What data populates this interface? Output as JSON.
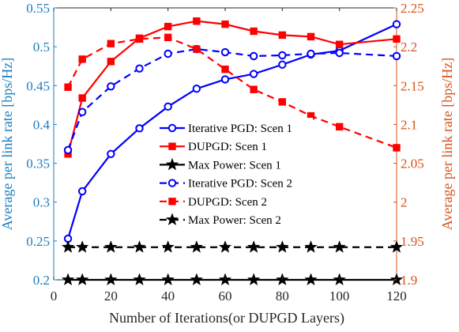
{
  "chart_data": {
    "type": "line",
    "xlabel": "Number of Iterations(or DUPGD Layers)",
    "ylabel_left": "Average per link rate [bps/Hz]",
    "ylabel_right": "Average per link rate [bps/Hz]",
    "xlim": [
      0,
      120
    ],
    "ylim_left": [
      0.2,
      0.55
    ],
    "ylim_right": [
      1.9,
      2.25
    ],
    "xticks": [
      "0",
      "20",
      "40",
      "60",
      "80",
      "100",
      "120"
    ],
    "yticks_left": [
      "0.2",
      "0.25",
      "0.3",
      "0.35",
      "0.4",
      "0.45",
      "0.5",
      "0.55"
    ],
    "yticks_right": [
      "1.9",
      "1.95",
      "2",
      "2.05",
      "2.1",
      "2.15",
      "2.2",
      "2.25"
    ],
    "grid": false,
    "legend_position": "center",
    "colors": {
      "left_axis": "#1c7ec0",
      "right_axis": "#d95319",
      "blue_series": "#0000ff",
      "red_series": "#ff0000",
      "black_series": "#000000"
    },
    "series": [
      {
        "name": "Iterative PGD: Scen 1",
        "axis": "left",
        "color": "#0000ff",
        "dash": "solid",
        "marker": "circle",
        "x": [
          5,
          10,
          20,
          30,
          40,
          50,
          60,
          70,
          80,
          90,
          100,
          120
        ],
        "y": [
          0.253,
          0.314,
          0.362,
          0.395,
          0.423,
          0.446,
          0.458,
          0.465,
          0.477,
          0.49,
          0.495,
          0.529
        ]
      },
      {
        "name": "DUPGD: Scen 1",
        "axis": "right",
        "color": "#ff0000",
        "dash": "solid",
        "marker": "square",
        "x": [
          5,
          10,
          20,
          30,
          40,
          50,
          60,
          70,
          80,
          90,
          100,
          120
        ],
        "y": [
          2.062,
          2.134,
          2.181,
          2.211,
          2.226,
          2.233,
          2.229,
          2.22,
          2.215,
          2.213,
          2.203,
          2.21
        ]
      },
      {
        "name": "Max Power: Scen 1",
        "axis": "left",
        "color": "#000000",
        "dash": "solid",
        "marker": "star",
        "x": [
          5,
          10,
          20,
          30,
          40,
          50,
          60,
          70,
          80,
          90,
          100,
          120
        ],
        "y": [
          0.2,
          0.2,
          0.2,
          0.2,
          0.2,
          0.2,
          0.2,
          0.2,
          0.2,
          0.2,
          0.2,
          0.2
        ]
      },
      {
        "name": "Iterative PGD: Scen 2",
        "axis": "left",
        "color": "#0000ff",
        "dash": "dashed",
        "marker": "circle",
        "x": [
          5,
          10,
          20,
          30,
          40,
          50,
          60,
          70,
          80,
          90,
          100,
          120
        ],
        "y": [
          0.367,
          0.416,
          0.449,
          0.472,
          0.491,
          0.497,
          0.493,
          0.488,
          0.489,
          0.491,
          0.492,
          0.488
        ]
      },
      {
        "name": "DUPGD: Scen 2",
        "axis": "right",
        "color": "#ff0000",
        "dash": "dashed",
        "marker": "square",
        "x": [
          5,
          10,
          20,
          30,
          40,
          50,
          60,
          70,
          80,
          90,
          100,
          120
        ],
        "y": [
          2.148,
          2.184,
          2.204,
          2.21,
          2.212,
          2.197,
          2.171,
          2.145,
          2.129,
          2.111,
          2.097,
          2.07
        ]
      },
      {
        "name": "Max Power: Scen 2",
        "axis": "left",
        "color": "#000000",
        "dash": "dashed",
        "marker": "star",
        "x": [
          5,
          10,
          20,
          30,
          40,
          50,
          60,
          70,
          80,
          90,
          100,
          120
        ],
        "y": [
          0.242,
          0.242,
          0.242,
          0.242,
          0.242,
          0.242,
          0.242,
          0.242,
          0.242,
          0.242,
          0.242,
          0.242
        ]
      }
    ]
  }
}
